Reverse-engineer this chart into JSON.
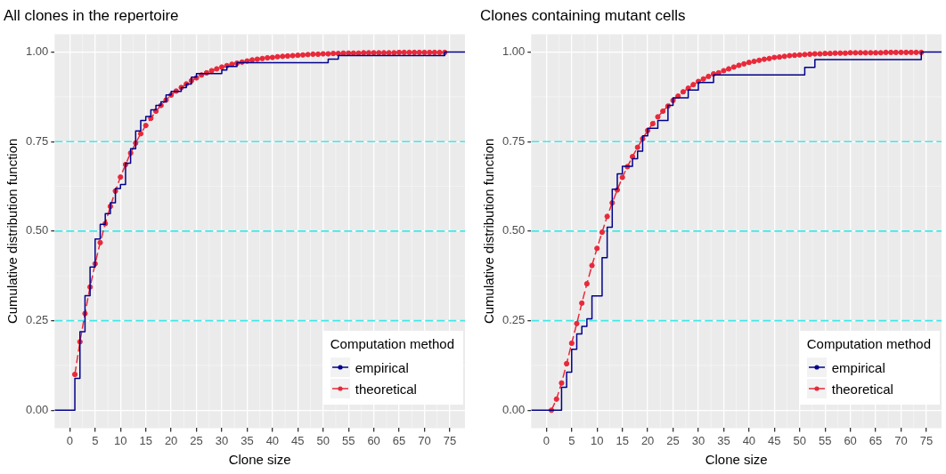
{
  "chart_data": [
    {
      "type": "line",
      "title": "All clones in the repertoire",
      "xlabel": "Clone size",
      "ylabel": "Cumulative distribution function",
      "legend_title": "Computation method",
      "legend": "bottom right",
      "grid": true,
      "xlim": [
        -3,
        78
      ],
      "ylim": [
        -0.05,
        1.05
      ],
      "xticks": [
        0,
        5,
        10,
        15,
        20,
        25,
        30,
        35,
        40,
        45,
        50,
        55,
        60,
        65,
        70,
        75
      ],
      "yticks": [
        {
          "value": 0,
          "label": "0.00"
        },
        {
          "value": 0.25,
          "label": "0.25"
        },
        {
          "value": 0.5,
          "label": "0.50"
        },
        {
          "value": 0.75,
          "label": "0.75"
        },
        {
          "value": 1,
          "label": "1.00"
        }
      ],
      "ref_lines": [
        {
          "axis": "y",
          "value": 0.25,
          "color": "#3ee8e8",
          "line_style": "dashed"
        },
        {
          "axis": "y",
          "value": 0.5,
          "color": "#40e8e8",
          "line_style": "dashed"
        },
        {
          "axis": "y",
          "value": 0.75,
          "color": "#42e8e8",
          "line_style": "dashed"
        }
      ],
      "series": [
        {
          "name": "empirical",
          "type": "step",
          "color": "#00008b",
          "marker": "none",
          "line_style": "solid",
          "x": [
            -3,
            1,
            2,
            3,
            4,
            5,
            6,
            7,
            8,
            9,
            10,
            11,
            12,
            13,
            14,
            15,
            16,
            17,
            18,
            19,
            20,
            22,
            23,
            24,
            25,
            30,
            31,
            33,
            51,
            53,
            74,
            78
          ],
          "values": [
            0,
            0.089,
            0.219,
            0.32,
            0.4,
            0.478,
            0.519,
            0.549,
            0.579,
            0.619,
            0.63,
            0.69,
            0.73,
            0.78,
            0.809,
            0.82,
            0.839,
            0.851,
            0.861,
            0.88,
            0.89,
            0.901,
            0.911,
            0.93,
            0.94,
            0.95,
            0.96,
            0.97,
            0.98,
            0.99,
            1,
            1
          ]
        },
        {
          "name": "theoretical",
          "type": "line",
          "color": "#e8293a",
          "marker": "circle",
          "line_style": "dashed",
          "x": [
            1,
            2,
            3,
            4,
            5,
            6,
            7,
            8,
            9,
            10,
            11,
            12,
            13,
            14,
            15,
            16,
            17,
            18,
            19,
            20,
            21,
            22,
            23,
            24,
            25,
            26,
            27,
            28,
            29,
            30,
            31,
            32,
            33,
            34,
            35,
            36,
            37,
            38,
            39,
            40,
            41,
            42,
            43,
            44,
            45,
            46,
            47,
            48,
            49,
            50,
            51,
            52,
            53,
            54,
            55,
            56,
            57,
            58,
            59,
            60,
            61,
            62,
            63,
            64,
            65,
            66,
            67,
            68,
            69,
            70,
            71,
            72,
            73,
            74
          ],
          "values": [
            0.1,
            0.191,
            0.27,
            0.344,
            0.409,
            0.468,
            0.521,
            0.569,
            0.612,
            0.651,
            0.686,
            0.718,
            0.746,
            0.772,
            0.795,
            0.815,
            0.835,
            0.851,
            0.866,
            0.88,
            0.891,
            0.901,
            0.911,
            0.92,
            0.928,
            0.936,
            0.942,
            0.948,
            0.953,
            0.958,
            0.962,
            0.966,
            0.969,
            0.972,
            0.975,
            0.978,
            0.98,
            0.982,
            0.984,
            0.985,
            0.987,
            0.988,
            0.989,
            0.99,
            0.991,
            0.992,
            0.993,
            0.994,
            0.994,
            0.995,
            0.995,
            0.996,
            0.996,
            0.997,
            0.997,
            0.997,
            0.997,
            0.998,
            0.998,
            0.998,
            0.998,
            0.998,
            0.998,
            0.998,
            0.999,
            0.999,
            0.999,
            0.999,
            0.999,
            0.999,
            0.999,
            0.999,
            0.999,
            0.999
          ]
        }
      ]
    },
    {
      "type": "line",
      "title": "Clones containing mutant cells",
      "xlabel": "Clone size",
      "ylabel": "Cumulative distribution function",
      "legend_title": "Computation method",
      "legend": "bottom right",
      "grid": true,
      "xlim": [
        -3,
        78
      ],
      "ylim": [
        -0.05,
        1.05
      ],
      "xticks": [
        0,
        5,
        10,
        15,
        20,
        25,
        30,
        35,
        40,
        45,
        50,
        55,
        60,
        65,
        70,
        75
      ],
      "yticks": [
        {
          "value": 0,
          "label": "0.00"
        },
        {
          "value": 0.25,
          "label": "0.25"
        },
        {
          "value": 0.5,
          "label": "0.50"
        },
        {
          "value": 0.75,
          "label": "0.75"
        },
        {
          "value": 1,
          "label": "1.00"
        }
      ],
      "ref_lines": [
        {
          "axis": "y",
          "value": 0.25,
          "color": "#3ee8e8",
          "line_style": "dashed"
        },
        {
          "axis": "y",
          "value": 0.5,
          "color": "#40e8e8",
          "line_style": "dashed"
        },
        {
          "axis": "y",
          "value": 0.75,
          "color": "#42e8e8",
          "line_style": "dashed"
        }
      ],
      "series": [
        {
          "name": "empirical",
          "type": "step",
          "color": "#00008b",
          "marker": "none",
          "line_style": "solid",
          "x": [
            -3,
            3,
            4,
            5,
            6,
            7,
            8,
            9,
            11,
            12,
            13,
            14,
            15,
            17,
            18,
            19,
            20,
            22,
            24,
            25,
            28,
            30,
            33,
            51,
            53,
            74,
            78
          ],
          "values": [
            0,
            0.064,
            0.106,
            0.17,
            0.213,
            0.234,
            0.255,
            0.319,
            0.426,
            0.511,
            0.617,
            0.66,
            0.681,
            0.702,
            0.723,
            0.766,
            0.787,
            0.809,
            0.851,
            0.872,
            0.894,
            0.915,
            0.936,
            0.957,
            0.979,
            1,
            1
          ]
        },
        {
          "name": "theoretical",
          "type": "line",
          "color": "#e8293a",
          "marker": "circle",
          "line_style": "dashed",
          "x": [
            1,
            2,
            3,
            4,
            5,
            6,
            7,
            8,
            9,
            10,
            11,
            12,
            13,
            14,
            15,
            16,
            17,
            18,
            19,
            20,
            21,
            22,
            23,
            24,
            25,
            26,
            27,
            28,
            29,
            30,
            31,
            32,
            33,
            34,
            35,
            36,
            37,
            38,
            39,
            40,
            41,
            42,
            43,
            44,
            45,
            46,
            47,
            48,
            49,
            50,
            51,
            52,
            53,
            54,
            55,
            56,
            57,
            58,
            59,
            60,
            61,
            62,
            63,
            64,
            65,
            66,
            67,
            68,
            69,
            70,
            71,
            72,
            73,
            74
          ],
          "values": [
            0,
            0.031,
            0.076,
            0.13,
            0.187,
            0.242,
            0.299,
            0.353,
            0.404,
            0.452,
            0.497,
            0.541,
            0.579,
            0.615,
            0.65,
            0.68,
            0.708,
            0.734,
            0.758,
            0.781,
            0.8,
            0.819,
            0.835,
            0.849,
            0.865,
            0.877,
            0.889,
            0.899,
            0.909,
            0.918,
            0.925,
            0.932,
            0.939,
            0.942,
            0.948,
            0.953,
            0.958,
            0.963,
            0.967,
            0.971,
            0.974,
            0.977,
            0.98,
            0.982,
            0.985,
            0.986,
            0.988,
            0.99,
            0.991,
            0.992,
            0.993,
            0.994,
            0.995,
            0.995,
            0.996,
            0.996,
            0.997,
            0.997,
            0.997,
            0.998,
            0.998,
            0.998,
            0.998,
            0.998,
            0.998,
            0.998,
            0.999,
            0.999,
            0.999,
            0.999,
            0.999,
            0.999,
            0.999,
            0.999
          ]
        }
      ]
    }
  ]
}
